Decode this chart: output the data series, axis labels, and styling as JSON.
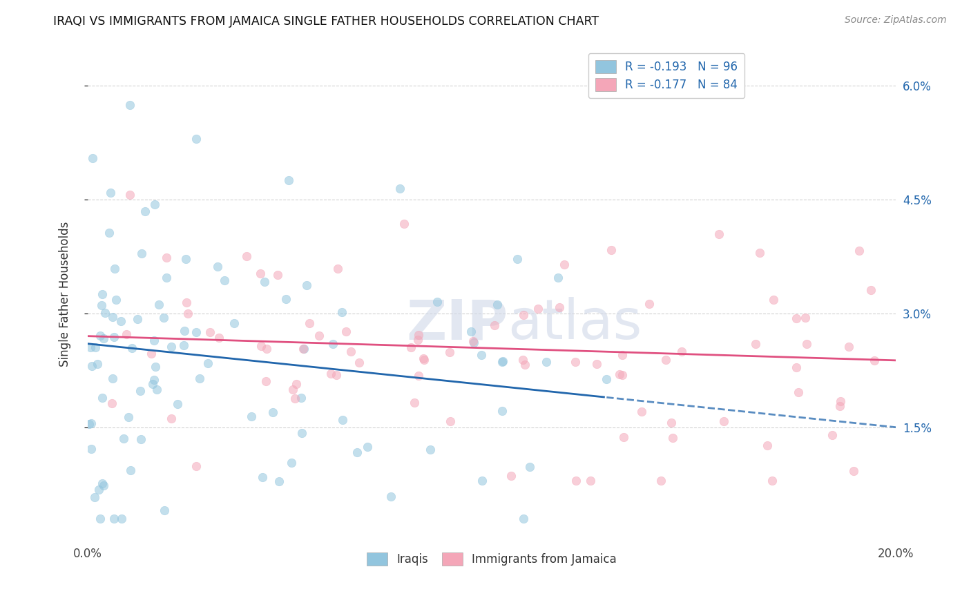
{
  "title": "IRAQI VS IMMIGRANTS FROM JAMAICA SINGLE FATHER HOUSEHOLDS CORRELATION CHART",
  "source": "Source: ZipAtlas.com",
  "ylabel": "Single Father Households",
  "xlim": [
    0.0,
    0.2
  ],
  "ylim": [
    0.0,
    0.065
  ],
  "ytick_positions": [
    0.015,
    0.03,
    0.045,
    0.06
  ],
  "ytick_labels_right": [
    "1.5%",
    "3.0%",
    "4.5%",
    "6.0%"
  ],
  "xtick_positions": [
    0.0,
    0.05,
    0.1,
    0.15,
    0.2
  ],
  "xtick_labels": [
    "0.0%",
    "",
    "",
    "",
    "20.0%"
  ],
  "legend_label1": "R = -0.193   N = 96",
  "legend_label2": "R = -0.177   N = 84",
  "legend_label_bottom1": "Iraqis",
  "legend_label_bottom2": "Immigrants from Jamaica",
  "color_blue": "#92c5de",
  "color_pink": "#f4a6b8",
  "color_blue_line": "#2166ac",
  "color_pink_line": "#e05080",
  "watermark_zip": "ZIP",
  "watermark_atlas": "atlas",
  "seed": 42,
  "N_iraqi": 96,
  "N_jamaica": 84,
  "blue_line_intercept": 0.026,
  "blue_line_slope": -0.055,
  "pink_line_intercept": 0.027,
  "pink_line_slope": -0.016
}
